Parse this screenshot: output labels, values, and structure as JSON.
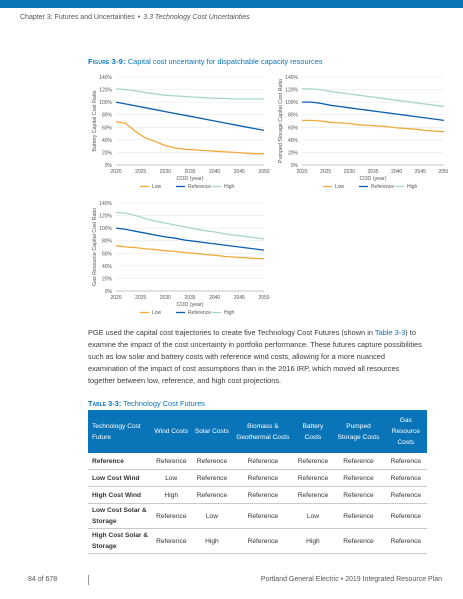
{
  "header": {
    "chapter": "Chapter 3: Futures and Uncertainties",
    "separator": "•",
    "section": "3.3 Technology Cost Uncertainties"
  },
  "figure": {
    "label": "Figure 3-9:",
    "title": "Capital cost uncertainty for dispatchable capacity resources"
  },
  "chart_data": [
    {
      "type": "line",
      "ylabel": "Battery Capital Cost Ratio",
      "xlabel": "COD (year)",
      "x": [
        2020,
        2022,
        2024,
        2026,
        2028,
        2030,
        2032,
        2034,
        2036,
        2038,
        2040,
        2042,
        2044,
        2046,
        2048,
        2050
      ],
      "xticks": [
        "2020",
        "2025",
        "2030",
        "2035",
        "2040",
        "2045",
        "2050"
      ],
      "yticks": [
        "0%",
        "20%",
        "40%",
        "60%",
        "80%",
        "100%",
        "120%",
        "140%"
      ],
      "ylim": [
        0,
        140
      ],
      "series": [
        {
          "name": "Low",
          "color": "#f2a93b",
          "values": [
            69,
            66,
            53,
            43,
            37,
            31,
            27,
            25,
            24,
            23,
            22,
            21,
            20,
            19,
            18,
            18
          ]
        },
        {
          "name": "Reference",
          "color": "#0a5fad",
          "values": [
            100,
            97,
            94,
            91,
            88,
            85,
            82,
            79,
            76,
            73,
            70,
            67,
            64,
            61,
            58,
            55
          ]
        },
        {
          "name": "High",
          "color": "#a8d5ca",
          "values": [
            121,
            120,
            118,
            115,
            113,
            111,
            110,
            109,
            108,
            107,
            106,
            106,
            105,
            105,
            105,
            105
          ]
        }
      ],
      "legend": [
        "Low",
        "Reference",
        "High"
      ],
      "legend_position": "bottom"
    },
    {
      "type": "line",
      "ylabel": "Pumped Storage Capital Cost Ratio",
      "xlabel": "COD (year)",
      "x": [
        2020,
        2022,
        2024,
        2026,
        2028,
        2030,
        2032,
        2034,
        2036,
        2038,
        2040,
        2042,
        2044,
        2046,
        2048,
        2050
      ],
      "xticks": [
        "2020",
        "2025",
        "2030",
        "2035",
        "2040",
        "2045",
        "2050"
      ],
      "yticks": [
        "0%",
        "20%",
        "40%",
        "60%",
        "80%",
        "100%",
        "120%",
        "140%"
      ],
      "ylim": [
        0,
        140
      ],
      "series": [
        {
          "name": "Low",
          "color": "#f2a93b",
          "values": [
            71,
            71,
            70,
            68,
            67,
            66,
            64,
            63,
            62,
            61,
            59,
            58,
            57,
            55,
            54,
            53
          ]
        },
        {
          "name": "Reference",
          "color": "#0a5fad",
          "values": [
            100,
            100,
            98,
            95,
            93,
            91,
            89,
            87,
            85,
            83,
            81,
            79,
            77,
            75,
            73,
            71
          ]
        },
        {
          "name": "High",
          "color": "#a8d5ca",
          "values": [
            121,
            121,
            120,
            117,
            115,
            113,
            111,
            109,
            107,
            105,
            103,
            101,
            99,
            97,
            95,
            93
          ]
        }
      ],
      "legend": [
        "Low",
        "Reference",
        "High"
      ],
      "legend_position": "bottom"
    },
    {
      "type": "line",
      "ylabel": "Gas Resource Capital Cost Ratio",
      "xlabel": "COD (year)",
      "x": [
        2020,
        2022,
        2024,
        2026,
        2028,
        2030,
        2032,
        2034,
        2036,
        2038,
        2040,
        2042,
        2044,
        2046,
        2048,
        2050
      ],
      "xticks": [
        "2020",
        "2025",
        "2030",
        "2035",
        "2040",
        "2045",
        "2050"
      ],
      "yticks": [
        "0%",
        "20%",
        "40%",
        "60%",
        "80%",
        "100%",
        "120%",
        "140%"
      ],
      "ylim": [
        0,
        140
      ],
      "series": [
        {
          "name": "Low",
          "color": "#f2a93b",
          "values": [
            72,
            70,
            69,
            67,
            66,
            64,
            63,
            61,
            60,
            58,
            57,
            55,
            54,
            53,
            52,
            51
          ]
        },
        {
          "name": "Reference",
          "color": "#0a5fad",
          "values": [
            100,
            98,
            95,
            92,
            89,
            86,
            84,
            81,
            79,
            77,
            75,
            73,
            71,
            69,
            67,
            65
          ]
        },
        {
          "name": "High",
          "color": "#a8d5ca",
          "values": [
            125,
            124,
            120,
            115,
            111,
            108,
            105,
            102,
            99,
            96,
            94,
            91,
            89,
            87,
            85,
            83
          ]
        }
      ],
      "legend": [
        "Low",
        "Reference",
        "High"
      ],
      "legend_position": "bottom"
    }
  ],
  "paragraph": {
    "before_ref": "PGE used the capital cost trajectories to create five Technology Cost Futures (shown in ",
    "ref": "Table 3-3",
    "after_ref": ") to examine the impact of the cost uncertainty in portfolio performance. These futures capture possibilities such as low solar and battery costs with reference wind costs, allowing for a more nuanced examination of the impact of cost assumptions than in the 2016 IRP, which moved all resources together between low, reference, and high cost projections."
  },
  "table": {
    "label": "Table 3-3:",
    "title": "Technology Cost Futures",
    "headers": [
      "Technology Cost Future",
      "Wind Costs",
      "Solar Costs",
      "Biomass & Geothermal Costs",
      "Battery Costs",
      "Pumped Storage Costs",
      "Gas Resource Costs"
    ],
    "rows": [
      [
        "Reference",
        "Reference",
        "Reference",
        "Reference",
        "Reference",
        "Reference",
        "Reference"
      ],
      [
        "Low Cost Wind",
        "Low",
        "Reference",
        "Reference",
        "Reference",
        "Reference",
        "Reference"
      ],
      [
        "High Cost Wind",
        "High",
        "Reference",
        "Reference",
        "Reference",
        "Reference",
        "Reference"
      ],
      [
        "Low Cost Solar & Storage",
        "Reference",
        "Low",
        "Reference",
        "Low",
        "Reference",
        "Reference"
      ],
      [
        "High Cost Solar & Storage",
        "Reference",
        "High",
        "Reference",
        "High",
        "Reference",
        "Reference"
      ]
    ]
  },
  "footer": {
    "page": "84 of 678",
    "org": "Portland General Electric",
    "separator": "•",
    "doc": "2019 Integrated Resource Plan"
  }
}
